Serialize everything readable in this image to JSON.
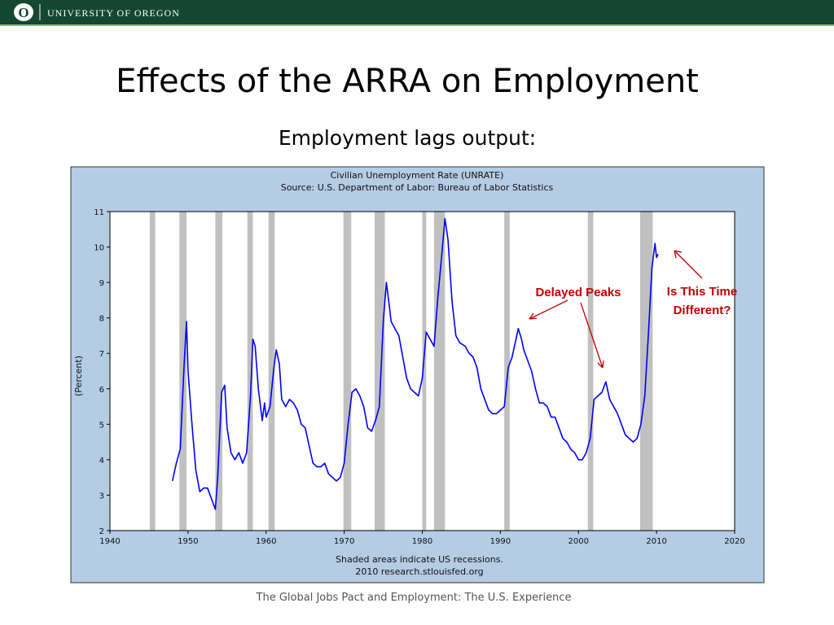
{
  "header": {
    "logo": "O",
    "brand": "UNIVERSITY OF OREGON"
  },
  "title": "Effects of the ARRA on Employment",
  "subtitle": "Employment lags output:",
  "footer": "The Global Jobs Pact and Employment: The U.S. Experience",
  "chart_data": {
    "type": "line",
    "title": "Civilian Unemployment Rate (UNRATE)",
    "subtitle": "Source: U.S. Department of Labor: Bureau of Labor Statistics",
    "y_label": "(Percent)",
    "notes": [
      "Shaded areas indicate US recessions.",
      "2010 research.stlouisfed.org"
    ],
    "annotations": [
      "Delayed Peaks",
      "Is This Time Different?"
    ],
    "color": "#0000ff",
    "annotation_color": "#c00000",
    "xlim": [
      1940,
      2020
    ],
    "xticks": [
      1940,
      1950,
      1960,
      1970,
      1980,
      1990,
      2000,
      2010,
      2020
    ],
    "ylim": [
      2,
      11
    ],
    "yticks": [
      2,
      3,
      4,
      5,
      6,
      7,
      8,
      9,
      10,
      11
    ],
    "recessions": [
      [
        1945.1,
        1945.8
      ],
      [
        1948.9,
        1949.8
      ],
      [
        1953.5,
        1954.4
      ],
      [
        1957.6,
        1958.3
      ],
      [
        1960.3,
        1961.1
      ],
      [
        1969.9,
        1970.9
      ],
      [
        1973.9,
        1975.2
      ],
      [
        1980.0,
        1980.5
      ],
      [
        1981.5,
        1982.9
      ],
      [
        1990.5,
        1991.2
      ],
      [
        2001.2,
        2001.9
      ],
      [
        2007.9,
        2009.5
      ]
    ],
    "x": [
      1948.0,
      1948.5,
      1949.0,
      1949.5,
      1949.8,
      1950.0,
      1950.5,
      1951.0,
      1951.5,
      1952.0,
      1952.5,
      1953.0,
      1953.5,
      1953.8,
      1954.3,
      1954.7,
      1955.0,
      1955.5,
      1956.0,
      1956.5,
      1957.0,
      1957.5,
      1958.0,
      1958.3,
      1958.6,
      1959.0,
      1959.5,
      1959.8,
      1960.0,
      1960.5,
      1961.0,
      1961.3,
      1961.7,
      1962.0,
      1962.5,
      1963.0,
      1963.5,
      1964.0,
      1964.5,
      1965.0,
      1965.5,
      1966.0,
      1966.5,
      1967.0,
      1967.5,
      1968.0,
      1968.5,
      1969.0,
      1969.5,
      1970.0,
      1970.5,
      1971.0,
      1971.5,
      1972.0,
      1972.5,
      1973.0,
      1973.5,
      1974.0,
      1974.5,
      1975.0,
      1975.4,
      1975.8,
      1976.0,
      1976.5,
      1977.0,
      1977.5,
      1978.0,
      1978.5,
      1979.0,
      1979.5,
      1980.0,
      1980.5,
      1981.0,
      1981.5,
      1982.0,
      1982.5,
      1982.9,
      1983.3,
      1983.8,
      1984.3,
      1984.8,
      1985.5,
      1986.0,
      1986.5,
      1987.0,
      1987.5,
      1988.0,
      1988.5,
      1989.0,
      1989.5,
      1990.0,
      1990.5,
      1991.0,
      1991.5,
      1992.3,
      1992.7,
      1993.0,
      1993.5,
      1994.0,
      1994.5,
      1995.0,
      1995.5,
      1996.0,
      1996.5,
      1997.0,
      1997.5,
      1998.0,
      1998.5,
      1999.0,
      1999.5,
      2000.0,
      2000.5,
      2001.0,
      2001.5,
      2002.0,
      2002.5,
      2003.0,
      2003.5,
      2004.0,
      2004.5,
      2005.0,
      2005.5,
      2006.0,
      2006.5,
      2007.0,
      2007.5,
      2008.0,
      2008.5,
      2009.0,
      2009.4,
      2009.8,
      2010.0,
      2010.2
    ],
    "values": [
      3.4,
      3.9,
      4.3,
      6.7,
      7.9,
      6.5,
      5.0,
      3.7,
      3.1,
      3.2,
      3.2,
      2.9,
      2.6,
      3.5,
      5.9,
      6.1,
      4.9,
      4.2,
      4.0,
      4.2,
      3.9,
      4.2,
      5.8,
      7.4,
      7.2,
      6.0,
      5.1,
      5.6,
      5.2,
      5.5,
      6.6,
      7.1,
      6.7,
      5.7,
      5.5,
      5.7,
      5.6,
      5.4,
      5.0,
      4.9,
      4.4,
      3.9,
      3.8,
      3.8,
      3.9,
      3.6,
      3.5,
      3.4,
      3.5,
      3.9,
      5.0,
      5.9,
      6.0,
      5.8,
      5.5,
      4.9,
      4.8,
      5.1,
      5.5,
      7.9,
      9.0,
      8.3,
      7.9,
      7.7,
      7.5,
      6.9,
      6.3,
      6.0,
      5.9,
      5.8,
      6.3,
      7.6,
      7.4,
      7.2,
      8.6,
      9.8,
      10.8,
      10.2,
      8.5,
      7.5,
      7.3,
      7.2,
      7.0,
      6.9,
      6.6,
      6.0,
      5.7,
      5.4,
      5.3,
      5.3,
      5.4,
      5.5,
      6.6,
      6.9,
      7.7,
      7.4,
      7.1,
      6.8,
      6.5,
      6.0,
      5.6,
      5.6,
      5.5,
      5.2,
      5.2,
      4.9,
      4.6,
      4.5,
      4.3,
      4.2,
      4.0,
      4.0,
      4.2,
      4.6,
      5.7,
      5.8,
      5.9,
      6.2,
      5.7,
      5.5,
      5.3,
      5.0,
      4.7,
      4.6,
      4.5,
      4.6,
      5.0,
      5.8,
      7.7,
      9.4,
      10.1,
      9.7,
      9.8
    ]
  }
}
